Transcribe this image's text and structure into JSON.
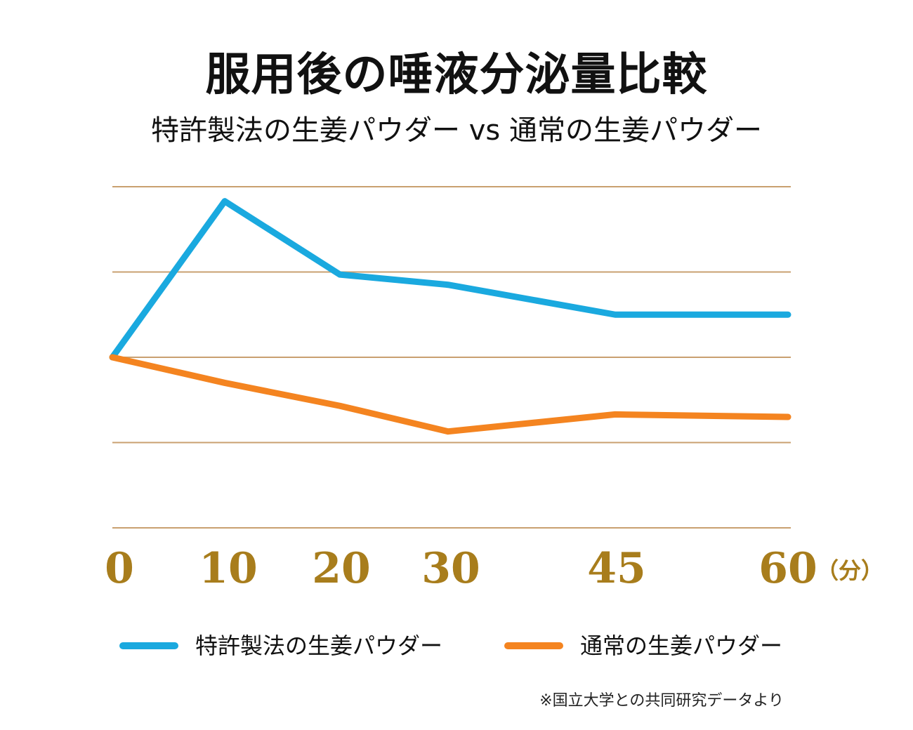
{
  "title": "服用後の唾液分泌量比較",
  "subtitle": "特許製法の生姜パウダー vs 通常の生姜パウダー",
  "note": "※国立大学との共同研究データより",
  "colors": {
    "patented": "#1aa9df",
    "regular": "#f48420",
    "grid": "#c9a070",
    "tick": "#a87d1c"
  },
  "chart_data": {
    "type": "line",
    "x": [
      0,
      10,
      20,
      30,
      45,
      60
    ],
    "tick_labels": [
      "0",
      "10",
      "20",
      "30",
      "45",
      "60"
    ],
    "x_unit": "（分）",
    "ylim": [
      -2,
      2
    ],
    "grid": true,
    "legend_position": "bottom",
    "series": [
      {
        "name": "特許製法の生姜パウダー",
        "values": [
          0,
          1.83,
          0.97,
          0.85,
          0.5,
          0.5
        ]
      },
      {
        "name": "通常の生姜パウダー",
        "values": [
          0,
          -0.3,
          -0.57,
          -0.87,
          -0.67,
          -0.7
        ]
      }
    ]
  }
}
